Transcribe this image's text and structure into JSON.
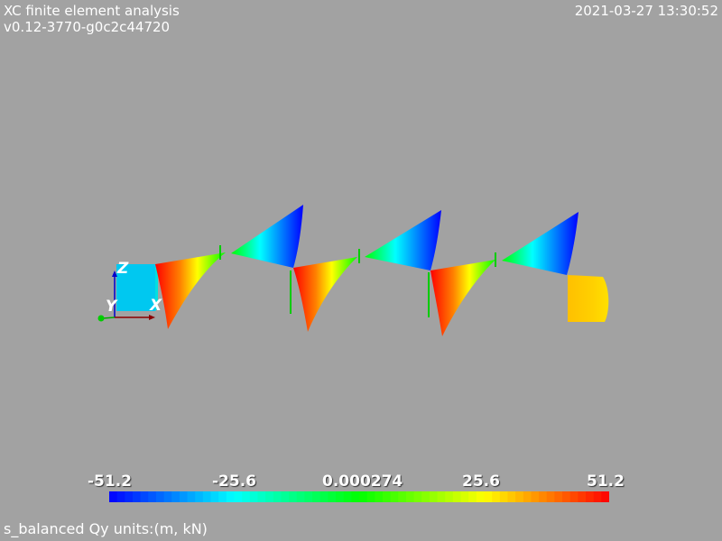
{
  "header": {
    "title": "XC finite element analysis",
    "version": "v0.12-3770-g0c2c44720",
    "timestamp": "2021-03-27 13:30:52"
  },
  "axes": {
    "z_label": "Z",
    "y_label": "Y",
    "x_label": "X"
  },
  "colorbar": {
    "ticks": [
      "-51.2",
      "-25.6",
      "0.000274",
      "25.6",
      "51.2"
    ],
    "min": -51.2,
    "max": 51.2,
    "colormap": [
      "#0000ff",
      "#00ffff",
      "#00ff00",
      "#ffff00",
      "#ff0000"
    ]
  },
  "legend": {
    "caption": "s_balanced Qy units:(m, kN)"
  },
  "colors": {
    "background": "#a2a2a2",
    "text": "#ffffff",
    "node_markers": "#00cc00",
    "axis_x": "#8b0000",
    "axis_y": "#00aa00",
    "axis_z": "#0000cc"
  }
}
